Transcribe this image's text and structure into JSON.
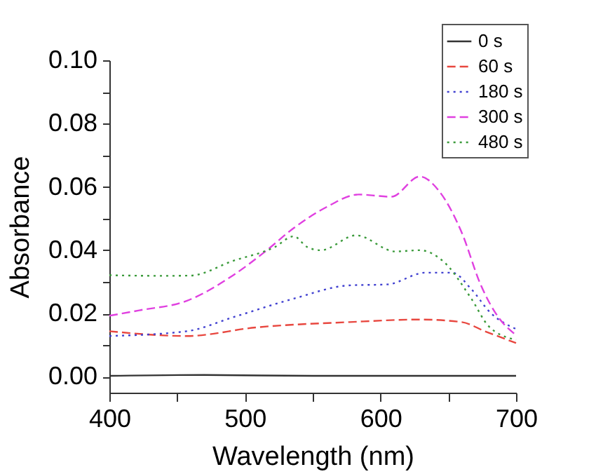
{
  "chart_data": {
    "type": "line",
    "xlabel": "Wavelength (nm)",
    "ylabel": "Absorbance",
    "xlim": [
      400,
      700
    ],
    "ylim": [
      -0.005,
      0.1
    ],
    "xticks": [
      400,
      {
        "value": 450,
        "label": null
      },
      500,
      {
        "value": 550,
        "label": null
      },
      600,
      {
        "value": 650,
        "label": null
      },
      700
    ],
    "yticks": [
      {
        "value": 0,
        "label": "0.00"
      },
      {
        "value": 0.01,
        "label": null
      },
      {
        "value": 0.02,
        "label": "0.02"
      },
      {
        "value": 0.03,
        "label": null
      },
      {
        "value": 0.04,
        "label": "0.04"
      },
      {
        "value": 0.05,
        "label": null
      },
      {
        "value": 0.06,
        "label": "0.06"
      },
      {
        "value": 0.07,
        "label": null
      },
      {
        "value": 0.08,
        "label": "0.08"
      },
      {
        "value": 0.09,
        "label": null
      },
      {
        "value": 0.1,
        "label": "0.10"
      }
    ],
    "grid": false,
    "legend": "top right",
    "marker": "none",
    "series": [
      {
        "name": "0 s",
        "color": "#333333",
        "line_style": "solid",
        "x": [
          400,
          470,
          550,
          700
        ],
        "values": [
          0.0003,
          0.0006,
          0.0003,
          0.0003
        ]
      },
      {
        "name": "60 s",
        "color": "#e8473f",
        "line_style": "dashed",
        "x": [
          400,
          457,
          508,
          577,
          629,
          660,
          677,
          700
        ],
        "values": [
          0.0144,
          0.0129,
          0.0156,
          0.0173,
          0.0181,
          0.0173,
          0.0144,
          0.0107
        ]
      },
      {
        "name": "180 s",
        "color": "#4040d0",
        "line_style": "dotted",
        "x": [
          400,
          457,
          491,
          536,
          577,
          605,
          633,
          653,
          667,
          681,
          700
        ],
        "values": [
          0.0129,
          0.0144,
          0.0188,
          0.0247,
          0.0289,
          0.0292,
          0.0329,
          0.0329,
          0.0277,
          0.0203,
          0.0151
        ]
      },
      {
        "name": "300 s",
        "color": "#e040e0",
        "line_style": "dashed",
        "x": [
          400,
          422,
          457,
          491,
          515,
          536,
          560,
          584,
          608,
          629,
          643,
          660,
          674,
          687,
          700
        ],
        "values": [
          0.0193,
          0.021,
          0.024,
          0.032,
          0.0396,
          0.047,
          0.0536,
          0.0576,
          0.0569,
          0.0633,
          0.0588,
          0.0455,
          0.029,
          0.0188,
          0.0132
        ]
      },
      {
        "name": "480 s",
        "color": "#3a9a3a",
        "line_style": "dotted",
        "x": [
          400,
          439,
          460,
          491,
          522,
          536,
          546,
          556,
          582,
          611,
          629,
          646,
          667,
          680,
          700
        ],
        "values": [
          0.0321,
          0.0319,
          0.032,
          0.0366,
          0.041,
          0.0444,
          0.041,
          0.04,
          0.0447,
          0.0396,
          0.04,
          0.0366,
          0.0247,
          0.0159,
          0.0117
        ]
      }
    ]
  }
}
